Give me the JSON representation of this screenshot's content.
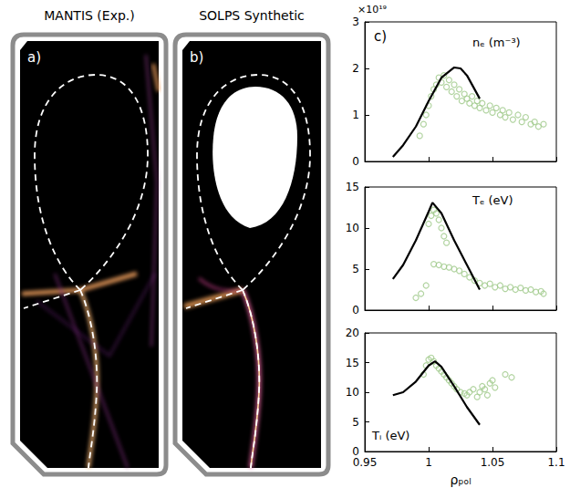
{
  "images": [
    {
      "label": "a)",
      "title": "MANTIS (Exp.)"
    },
    {
      "label": "b)",
      "title": "SOLPS Synthetic"
    }
  ],
  "chart_data": [
    {
      "type": "scatter",
      "title": "nₑ (m⁻³)",
      "annotations": [
        "c)",
        "×10¹⁹"
      ],
      "xlim": [
        0.95,
        1.1
      ],
      "xticks": [
        0.95,
        1,
        1.05,
        1.1
      ],
      "ylim": [
        0,
        3
      ],
      "yticks": [
        0,
        1,
        2,
        3
      ],
      "tick_labels": "y",
      "grid": false,
      "series": [
        {
          "type": "line",
          "color": "#000000",
          "line_style": "solid",
          "x": [
            0.972,
            0.98,
            0.99,
            1.0,
            1.01,
            1.02,
            1.025,
            1.03,
            1.035,
            1.04
          ],
          "values": [
            0.1,
            0.35,
            0.75,
            1.3,
            1.8,
            2.02,
            2.0,
            1.85,
            1.6,
            1.35
          ]
        },
        {
          "type": "scatter",
          "color": "#9fc98a",
          "marker": "open-circle",
          "x": [
            0.993,
            0.996,
            0.998,
            1.0,
            1.002,
            1.004,
            1.006,
            1.008,
            1.01,
            1.012,
            1.014,
            1.016,
            1.018,
            1.02,
            1.022,
            1.024,
            1.026,
            1.028,
            1.03,
            1.032,
            1.034,
            1.036,
            1.038,
            1.04,
            1.042,
            1.045,
            1.048,
            1.05,
            1.053,
            1.056,
            1.058,
            1.06,
            1.063,
            1.066,
            1.07,
            1.073,
            1.076,
            1.08,
            1.083,
            1.086,
            1.09
          ],
          "values": [
            0.55,
            0.8,
            1.0,
            1.2,
            1.4,
            1.55,
            1.65,
            1.8,
            1.7,
            1.85,
            1.6,
            1.75,
            1.5,
            1.65,
            1.4,
            1.55,
            1.3,
            1.45,
            1.35,
            1.25,
            1.4,
            1.2,
            1.3,
            1.15,
            1.25,
            1.1,
            1.2,
            1.05,
            1.15,
            1.0,
            1.1,
            0.95,
            1.05,
            0.9,
            1.0,
            0.85,
            0.95,
            0.8,
            0.85,
            0.75,
            0.8
          ]
        }
      ]
    },
    {
      "type": "scatter",
      "title": "Tₑ (eV)",
      "xlim": [
        0.95,
        1.1
      ],
      "xticks": [
        0.95,
        1,
        1.05,
        1.1
      ],
      "ylim": [
        0,
        15
      ],
      "yticks": [
        0,
        5,
        10,
        15
      ],
      "tick_labels": "y",
      "grid": false,
      "series": [
        {
          "type": "line",
          "color": "#000000",
          "line_style": "solid",
          "x": [
            0.972,
            0.98,
            0.99,
            1.0,
            1.003,
            1.01,
            1.02,
            1.03,
            1.04
          ],
          "values": [
            3.8,
            5.5,
            8.5,
            12,
            13.1,
            11.8,
            8.5,
            5.5,
            2.5
          ]
        },
        {
          "type": "scatter",
          "color": "#9fc98a",
          "marker": "open-circle",
          "x": [
            0.99,
            0.994,
            0.998,
            1.0,
            1.002,
            1.004,
            1.006,
            1.008,
            1.01,
            1.012,
            1.014,
            1.004,
            1.008,
            1.012,
            1.016,
            1.02,
            1.024,
            1.028,
            1.032,
            1.036,
            1.04,
            1.044,
            1.048,
            1.052,
            1.056,
            1.06,
            1.064,
            1.068,
            1.072,
            1.076,
            1.08,
            1.084,
            1.088,
            1.09
          ],
          "values": [
            1.5,
            2.0,
            3.0,
            10.5,
            11.5,
            12.2,
            11.8,
            11.0,
            10.0,
            9.0,
            8.2,
            5.6,
            5.5,
            5.3,
            5.2,
            5.0,
            4.8,
            4.4,
            4.0,
            3.6,
            3.3,
            3.0,
            3.2,
            2.8,
            3.0,
            2.6,
            2.8,
            2.5,
            2.7,
            2.4,
            2.5,
            2.2,
            2.3,
            2.0
          ]
        }
      ]
    },
    {
      "type": "scatter",
      "title": "Tᵢ (eV)",
      "xlabel": "ρₚₒₗ",
      "xlim": [
        0.95,
        1.1
      ],
      "xticks": [
        0.95,
        1,
        1.05,
        1.1
      ],
      "ylim": [
        0,
        20
      ],
      "yticks": [
        0,
        5,
        10,
        15,
        20
      ],
      "grid": false,
      "series": [
        {
          "type": "line",
          "color": "#000000",
          "line_style": "solid",
          "x": [
            0.972,
            0.98,
            0.99,
            1.0,
            1.005,
            1.01,
            1.02,
            1.03,
            1.04
          ],
          "values": [
            9.5,
            10,
            11.8,
            14.5,
            15.2,
            14.3,
            11,
            7.5,
            4.5
          ]
        },
        {
          "type": "scatter",
          "color": "#9fc98a",
          "marker": "open-circle",
          "x": [
            0.996,
            0.998,
            1.0,
            1.002,
            1.004,
            1.006,
            1.008,
            1.01,
            1.012,
            1.014,
            1.016,
            1.018,
            1.02,
            1.022,
            1.025,
            1.028,
            1.03,
            1.032,
            1.035,
            1.038,
            1.04,
            1.042,
            1.044,
            1.046,
            1.048,
            1.05,
            1.052,
            1.06,
            1.065
          ],
          "values": [
            13.0,
            14.5,
            15.5,
            15.8,
            15.2,
            14.5,
            14.0,
            13.5,
            13.0,
            12.5,
            12.0,
            11.5,
            11.0,
            10.5,
            10.0,
            9.8,
            9.5,
            10.0,
            10.5,
            9.2,
            10.0,
            11.0,
            10.5,
            9.5,
            11.5,
            12.0,
            10.8,
            13.0,
            12.5
          ]
        }
      ]
    }
  ]
}
